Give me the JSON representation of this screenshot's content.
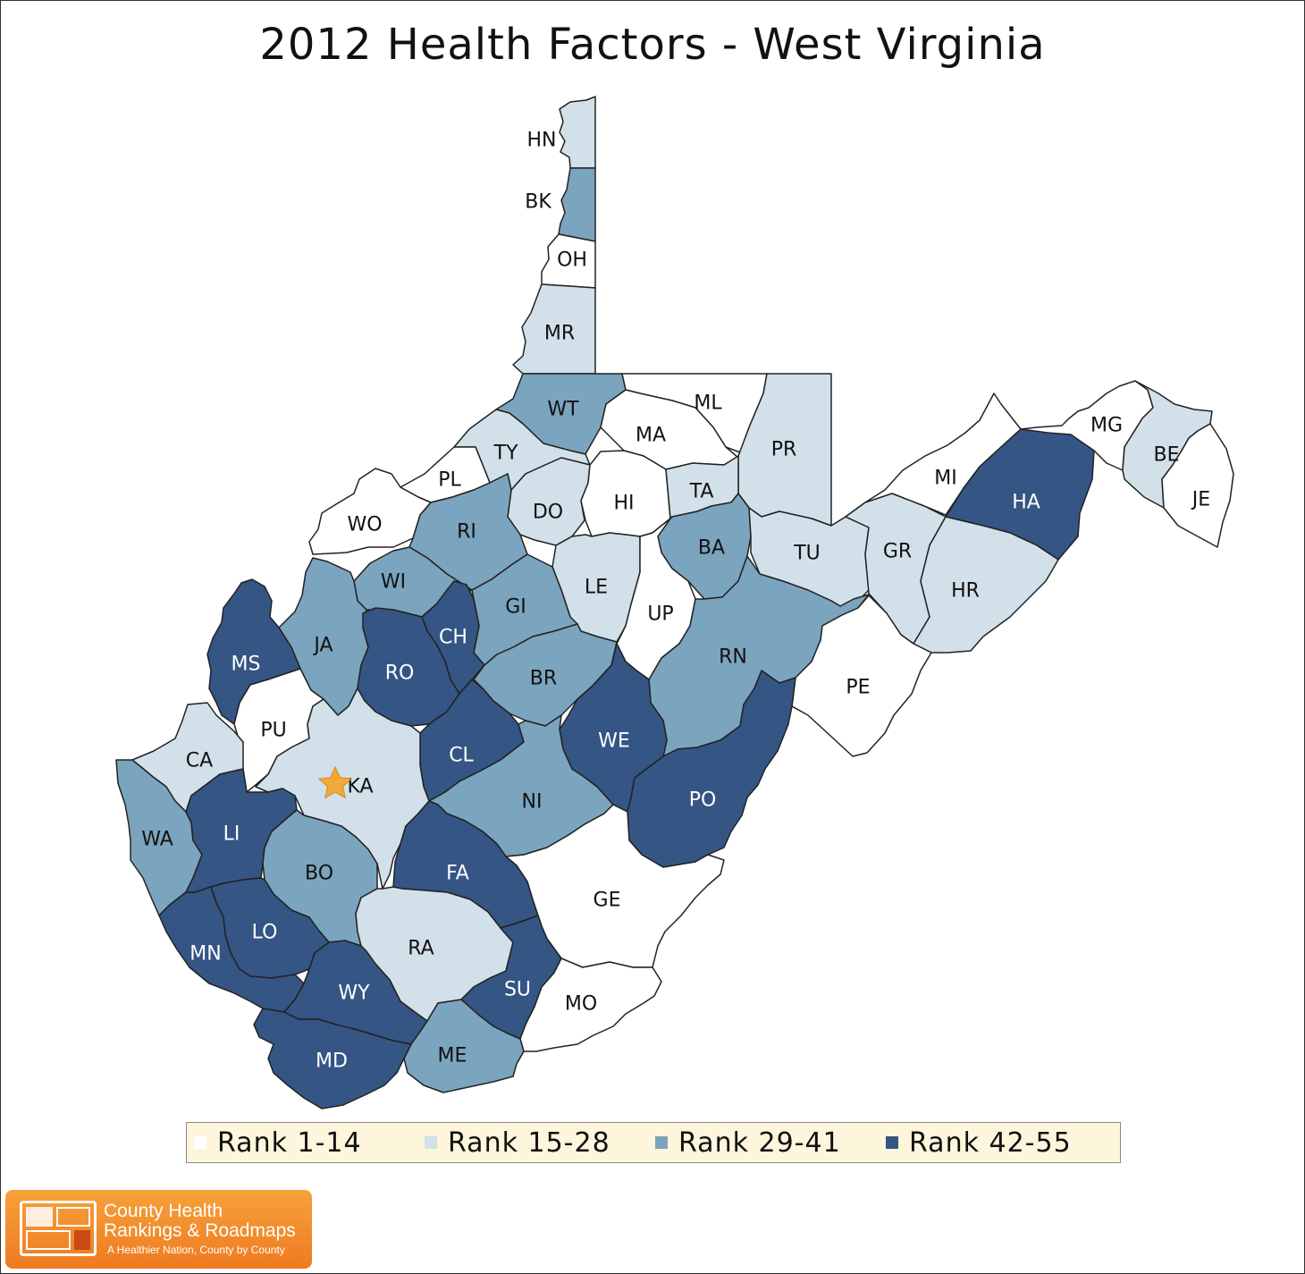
{
  "title": "2012 Health Factors - West Virginia",
  "colors": {
    "rank_1_14": "#ffffff",
    "rank_15_28": "#d2e0e9",
    "rank_29_41": "#7ba4be",
    "rank_42_55": "#355584",
    "star": "#f4a83a"
  },
  "legend": [
    {
      "label": "Rank 1-14",
      "color": "#ffffff"
    },
    {
      "label": "Rank 15-28",
      "color": "#d2e0e9"
    },
    {
      "label": "Rank 29-41",
      "color": "#7ba4be"
    },
    {
      "label": "Rank 42-55",
      "color": "#355584"
    }
  ],
  "counties": [
    {
      "code": "HN",
      "rank_group": "15-28"
    },
    {
      "code": "BK",
      "rank_group": "29-41"
    },
    {
      "code": "OH",
      "rank_group": "1-14"
    },
    {
      "code": "MR",
      "rank_group": "15-28"
    },
    {
      "code": "WT",
      "rank_group": "29-41"
    },
    {
      "code": "ML",
      "rank_group": "1-14"
    },
    {
      "code": "MA",
      "rank_group": "1-14"
    },
    {
      "code": "PR",
      "rank_group": "15-28"
    },
    {
      "code": "TY",
      "rank_group": "15-28"
    },
    {
      "code": "PL",
      "rank_group": "1-14"
    },
    {
      "code": "DO",
      "rank_group": "15-28"
    },
    {
      "code": "HI",
      "rank_group": "1-14"
    },
    {
      "code": "TA",
      "rank_group": "15-28"
    },
    {
      "code": "WO",
      "rank_group": "1-14"
    },
    {
      "code": "RI",
      "rank_group": "29-41"
    },
    {
      "code": "MI",
      "rank_group": "1-14"
    },
    {
      "code": "MG",
      "rank_group": "1-14"
    },
    {
      "code": "BE",
      "rank_group": "15-28"
    },
    {
      "code": "JE",
      "rank_group": "1-14"
    },
    {
      "code": "HA",
      "rank_group": "42-55"
    },
    {
      "code": "BA",
      "rank_group": "29-41"
    },
    {
      "code": "TU",
      "rank_group": "15-28"
    },
    {
      "code": "GR",
      "rank_group": "15-28"
    },
    {
      "code": "WI",
      "rank_group": "29-41"
    },
    {
      "code": "LE",
      "rank_group": "15-28"
    },
    {
      "code": "GI",
      "rank_group": "29-41"
    },
    {
      "code": "UP",
      "rank_group": "1-14"
    },
    {
      "code": "HR",
      "rank_group": "15-28"
    },
    {
      "code": "JA",
      "rank_group": "29-41"
    },
    {
      "code": "CH",
      "rank_group": "42-55"
    },
    {
      "code": "MS",
      "rank_group": "42-55"
    },
    {
      "code": "RO",
      "rank_group": "42-55"
    },
    {
      "code": "RN",
      "rank_group": "29-41"
    },
    {
      "code": "BR",
      "rank_group": "29-41"
    },
    {
      "code": "PE",
      "rank_group": "1-14"
    },
    {
      "code": "PU",
      "rank_group": "1-14"
    },
    {
      "code": "WE",
      "rank_group": "42-55"
    },
    {
      "code": "CA",
      "rank_group": "15-28"
    },
    {
      "code": "CL",
      "rank_group": "42-55"
    },
    {
      "code": "KA",
      "rank_group": "15-28"
    },
    {
      "code": "PO",
      "rank_group": "42-55"
    },
    {
      "code": "NI",
      "rank_group": "29-41"
    },
    {
      "code": "WA",
      "rank_group": "29-41"
    },
    {
      "code": "LI",
      "rank_group": "42-55"
    },
    {
      "code": "FA",
      "rank_group": "42-55"
    },
    {
      "code": "BO",
      "rank_group": "29-41"
    },
    {
      "code": "GE",
      "rank_group": "1-14"
    },
    {
      "code": "LO",
      "rank_group": "42-55"
    },
    {
      "code": "MN",
      "rank_group": "42-55"
    },
    {
      "code": "RA",
      "rank_group": "15-28"
    },
    {
      "code": "SU",
      "rank_group": "42-55"
    },
    {
      "code": "WY",
      "rank_group": "42-55"
    },
    {
      "code": "MO",
      "rank_group": "1-14"
    },
    {
      "code": "ME",
      "rank_group": "29-41"
    },
    {
      "code": "MD",
      "rank_group": "42-55"
    }
  ],
  "logo": {
    "line1": "County Health",
    "line2": "Rankings & Roadmaps",
    "tagline": "A Healthier Nation, County by County"
  }
}
